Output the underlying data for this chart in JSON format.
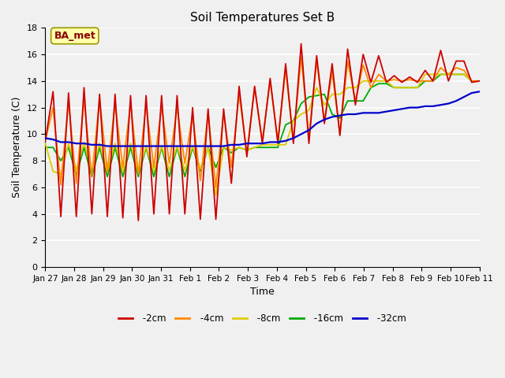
{
  "title": "Soil Temperatures Set B",
  "xlabel": "Time",
  "ylabel": "Soil Temperature (C)",
  "annotation": "BA_met",
  "ylim": [
    0,
    18
  ],
  "figsize": [
    6.4,
    4.8
  ],
  "dpi": 100,
  "bg_color": "#f0f0f0",
  "x_tick_labels": [
    "Jan 27",
    "Jan 28",
    "Jan 29",
    "Jan 30",
    "Jan 31",
    "Feb 1",
    "Feb 2",
    "Feb 3",
    "Feb 4",
    "Feb 5",
    "Feb 6",
    "Feb 7",
    "Feb 8",
    "Feb 9",
    "Feb 10",
    "Feb 11"
  ],
  "series": {
    "-2cm": {
      "color": "#cc0000"
    },
    "-4cm": {
      "color": "#ff8800"
    },
    "-8cm": {
      "color": "#ddcc00"
    },
    "-16cm": {
      "color": "#00aa00"
    },
    "-32cm": {
      "color": "#0000cc"
    }
  },
  "data_2cm": [
    9.5,
    13.2,
    3.8,
    13.1,
    3.8,
    13.5,
    4.0,
    13.0,
    3.8,
    13.0,
    3.7,
    12.9,
    3.5,
    12.9,
    4.0,
    12.9,
    4.0,
    12.9,
    4.0,
    12.0,
    3.6,
    11.9,
    3.6,
    11.9,
    6.3,
    13.6,
    8.3,
    13.6,
    9.3,
    14.2,
    9.3,
    15.3,
    9.3,
    16.8,
    9.3,
    15.9,
    10.8,
    15.3,
    9.9,
    16.4,
    12.2,
    16.0,
    13.9,
    15.9,
    13.9,
    14.4,
    13.9,
    14.3,
    13.9,
    14.8,
    14.0,
    16.3,
    14.0,
    15.5,
    15.5,
    13.9,
    14.0
  ],
  "data_4cm": [
    9.5,
    12.0,
    6.2,
    12.5,
    6.3,
    12.6,
    6.8,
    12.7,
    7.2,
    12.3,
    7.5,
    12.3,
    7.0,
    12.2,
    7.5,
    12.1,
    7.8,
    12.0,
    7.8,
    11.5,
    6.5,
    11.6,
    6.0,
    11.6,
    7.5,
    13.0,
    8.6,
    13.5,
    9.5,
    14.0,
    9.5,
    14.9,
    9.5,
    15.8,
    9.8,
    15.5,
    10.9,
    14.7,
    10.0,
    15.5,
    12.5,
    15.2,
    13.5,
    14.5,
    14.0,
    14.1,
    14.0,
    14.1,
    14.0,
    14.0,
    14.0,
    15.0,
    14.5,
    15.0,
    14.8,
    14.0,
    14.0
  ],
  "data_8cm": [
    9.3,
    7.2,
    7.0,
    9.3,
    7.3,
    9.4,
    7.2,
    9.3,
    7.2,
    9.3,
    7.2,
    9.3,
    7.1,
    9.1,
    7.2,
    9.1,
    7.3,
    9.1,
    7.3,
    9.1,
    7.4,
    9.0,
    5.4,
    9.0,
    8.8,
    9.0,
    8.8,
    9.0,
    9.2,
    9.2,
    9.2,
    9.2,
    11.0,
    11.5,
    11.8,
    13.5,
    12.2,
    13.0,
    13.0,
    13.5,
    13.5,
    14.0,
    14.0,
    14.0,
    14.0,
    13.5,
    13.5,
    13.5,
    13.5,
    14.5,
    14.5,
    14.5,
    14.5,
    14.5,
    14.5,
    14.0,
    14.0
  ],
  "data_16cm": [
    9.0,
    9.0,
    8.0,
    9.0,
    6.9,
    9.0,
    6.8,
    9.0,
    6.8,
    9.0,
    6.8,
    9.0,
    6.8,
    9.0,
    6.8,
    9.0,
    6.8,
    9.0,
    6.8,
    9.0,
    7.2,
    9.0,
    7.5,
    9.0,
    8.6,
    9.0,
    8.8,
    9.0,
    9.0,
    9.0,
    9.0,
    10.7,
    11.0,
    12.3,
    12.8,
    12.9,
    13.0,
    11.5,
    11.2,
    12.5,
    12.5,
    12.5,
    13.5,
    13.8,
    13.8,
    13.5,
    13.5,
    13.5,
    13.5,
    14.0,
    14.0,
    14.5,
    14.5,
    14.5,
    14.5,
    14.0,
    14.0
  ],
  "data_32cm": [
    9.7,
    9.6,
    9.4,
    9.4,
    9.3,
    9.3,
    9.2,
    9.2,
    9.1,
    9.1,
    9.1,
    9.1,
    9.1,
    9.1,
    9.1,
    9.1,
    9.1,
    9.1,
    9.1,
    9.1,
    9.1,
    9.1,
    9.1,
    9.1,
    9.2,
    9.2,
    9.3,
    9.3,
    9.3,
    9.4,
    9.4,
    9.5,
    9.7,
    10.0,
    10.3,
    10.8,
    11.1,
    11.3,
    11.4,
    11.5,
    11.5,
    11.6,
    11.6,
    11.6,
    11.7,
    11.8,
    11.9,
    12.0,
    12.0,
    12.1,
    12.1,
    12.2,
    12.3,
    12.5,
    12.8,
    13.1,
    13.2
  ]
}
